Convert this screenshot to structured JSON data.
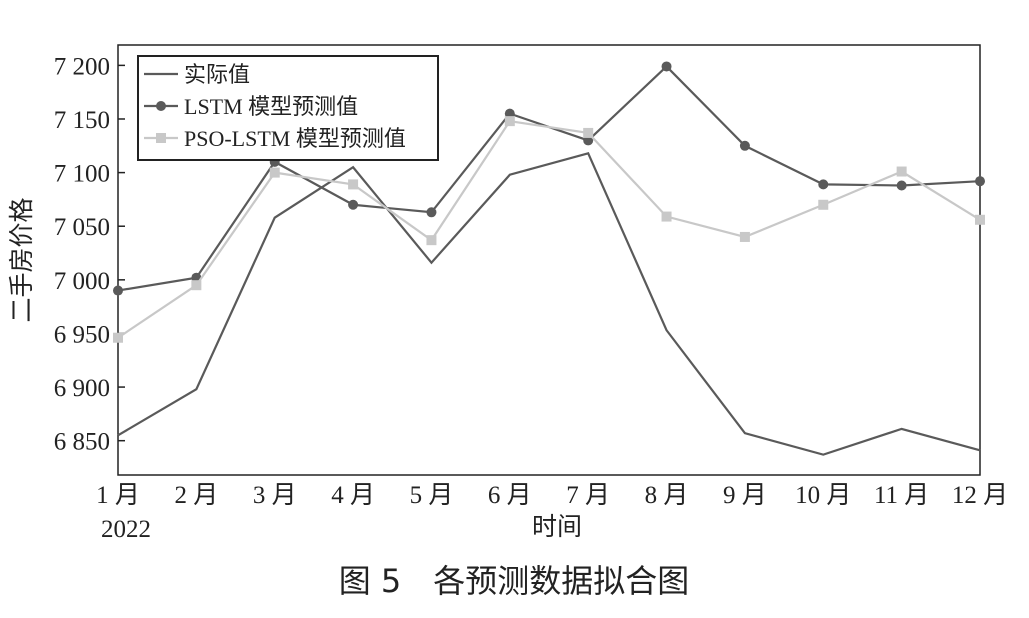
{
  "chart_data": {
    "type": "line",
    "caption": "图 5　各预测数据拟合图",
    "xlabel": "时间",
    "ylabel": "二手房价格",
    "categories": [
      "1 月",
      "2 月",
      "3 月",
      "4 月",
      "5 月",
      "6 月",
      "7 月",
      "8 月",
      "9 月",
      "10 月",
      "11 月",
      "12 月"
    ],
    "first_category_year": "2022",
    "series": [
      {
        "name": "实际值",
        "color": "#5a5a5a",
        "marker": "none",
        "values": [
          6855,
          6898,
          7058,
          7105,
          7016,
          7098,
          7118,
          6953,
          6857,
          6837,
          6861,
          6841
        ]
      },
      {
        "name": "LSTM 模型预测值",
        "color": "#5a5a5a",
        "marker": "circle",
        "values": [
          6990,
          7002,
          7110,
          7070,
          7063,
          7155,
          7130,
          7199,
          7125,
          7089,
          7088,
          7092
        ]
      },
      {
        "name": "PSO-LSTM 模型预测值",
        "color": "#c8c8c8",
        "marker": "square",
        "values": [
          6946,
          6995,
          7100,
          7089,
          7037,
          7148,
          7137,
          7059,
          7040,
          7070,
          7101,
          7056
        ]
      }
    ],
    "ylim": [
      6818,
      7219
    ],
    "yticks": [
      {
        "value": 6850,
        "label": "6 850"
      },
      {
        "value": 6900,
        "label": "6 900"
      },
      {
        "value": 6950,
        "label": "6 950"
      },
      {
        "value": 7000,
        "label": "7 000"
      },
      {
        "value": 7050,
        "label": "7 050"
      },
      {
        "value": 7100,
        "label": "7 100"
      },
      {
        "value": 7150,
        "label": "7 150"
      },
      {
        "value": 7200,
        "label": "7 200"
      }
    ],
    "legend": "upper-left"
  }
}
